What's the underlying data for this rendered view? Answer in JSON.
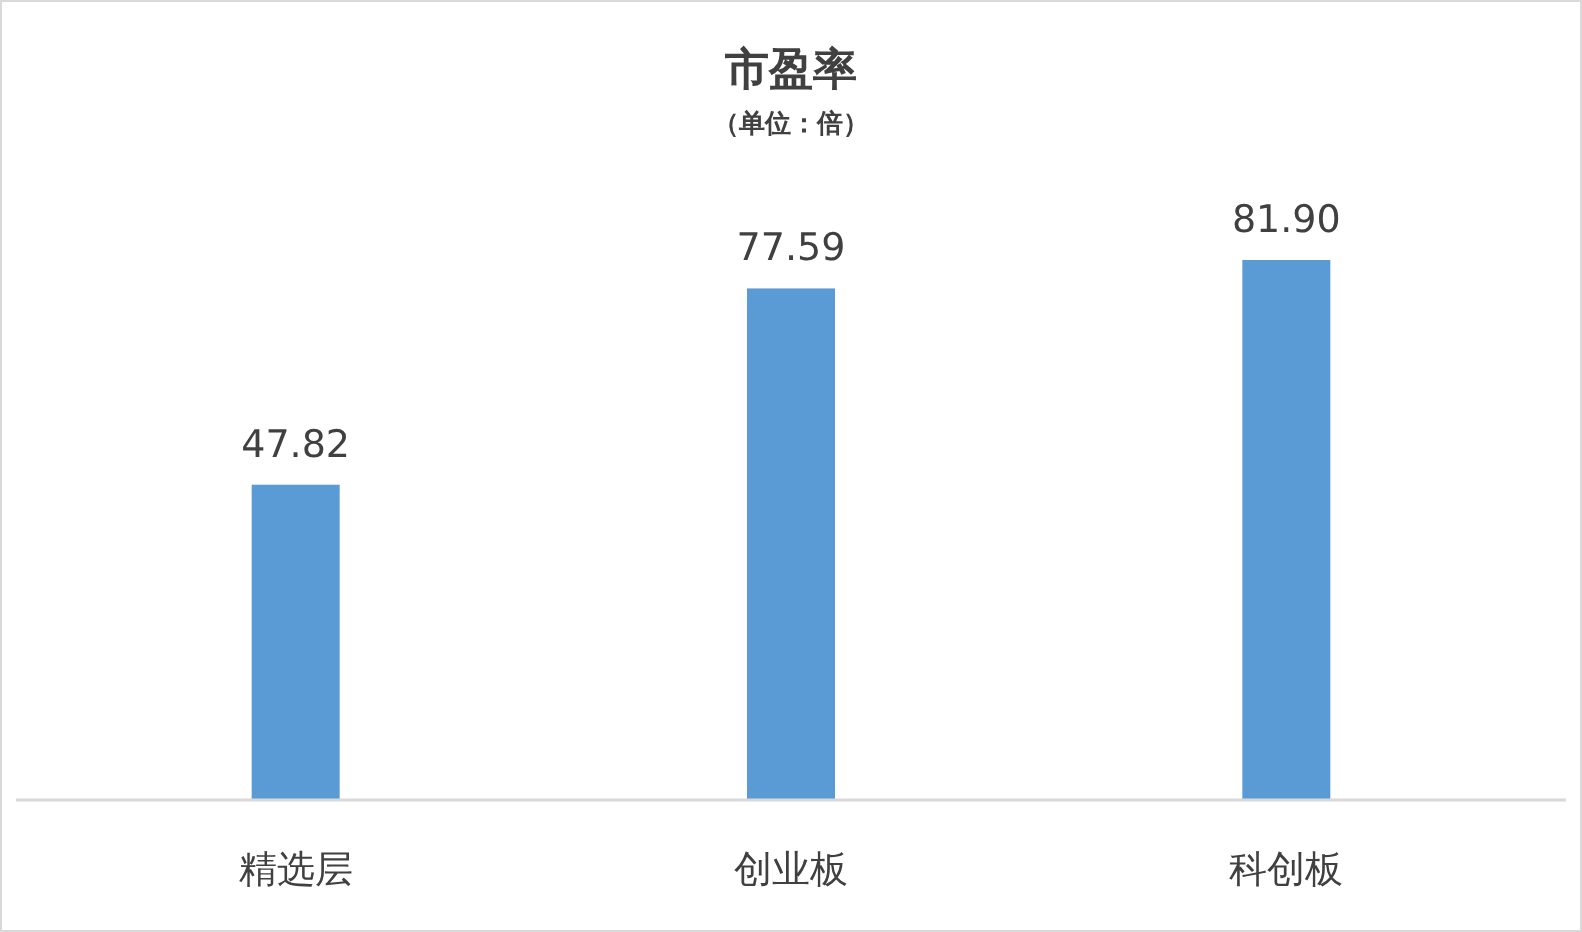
{
  "chart_data": {
    "type": "bar",
    "title": "市盈率",
    "subtitle": "（单位：倍）",
    "categories": [
      "精选层",
      "创业板",
      "科创板"
    ],
    "values": [
      47.82,
      77.59,
      81.9
    ],
    "value_labels": [
      "47.82",
      "77.59",
      "81.90"
    ],
    "color": "#5b9bd5"
  }
}
